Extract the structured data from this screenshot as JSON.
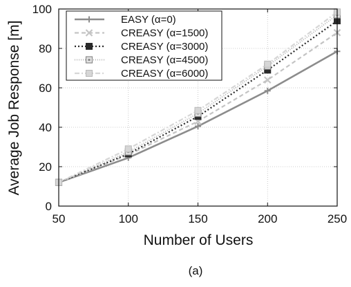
{
  "chart_data": {
    "type": "line",
    "title": "",
    "xlabel": "Number of Users",
    "ylabel": "Average Job Response [m]",
    "caption": "(a)",
    "x": [
      50,
      100,
      150,
      200,
      250
    ],
    "xlim": [
      50,
      250
    ],
    "ylim": [
      0,
      100
    ],
    "xticks": [
      50,
      100,
      150,
      200,
      250
    ],
    "yticks": [
      0,
      20,
      40,
      60,
      80,
      100
    ],
    "grid": true,
    "legend_position": "top-left",
    "series": [
      {
        "name": "EASY (α=0)",
        "values": [
          12,
          24.5,
          40.5,
          58.5,
          78.5
        ],
        "color": "#8c8c8c",
        "dash": "",
        "marker": "plus",
        "width": 2.6
      },
      {
        "name": "CREASY (α=1500)",
        "values": [
          12,
          26,
          43,
          64,
          88
        ],
        "color": "#c4c4c4",
        "dash": "6,4",
        "marker": "x",
        "width": 2.2
      },
      {
        "name": "CREASY (α=3000)",
        "values": [
          12,
          26.5,
          45.5,
          69,
          94
        ],
        "color": "#2a2a2a",
        "dash": "2,3",
        "marker": "filled-square",
        "width": 2.2
      },
      {
        "name": "CREASY (α=4500)",
        "values": [
          12,
          27.5,
          47,
          71,
          97
        ],
        "color": "#b4b4b4",
        "dash": "1,2",
        "marker": "open-square",
        "width": 2
      },
      {
        "name": "CREASY (α=6000)",
        "values": [
          12,
          29,
          48.5,
          72,
          98.5
        ],
        "color": "#d6d6d6",
        "dash": "7,3,2,3",
        "marker": "light-square",
        "width": 2.2
      }
    ]
  }
}
